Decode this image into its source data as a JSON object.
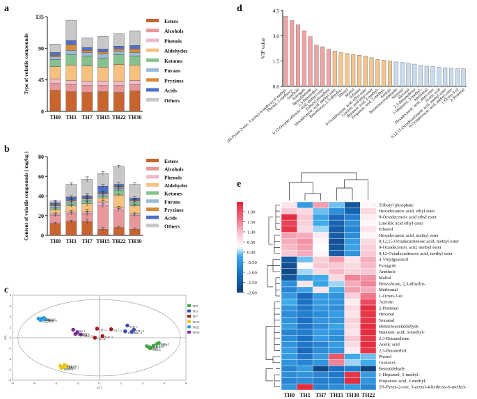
{
  "colors": {
    "Esters": "#c8642e",
    "Alcohols": "#e8989a",
    "Phenols": "#f1b8c8",
    "Aldehydes": "#f6c07e",
    "Ketones": "#86c28e",
    "Furans": "#9bbad8",
    "Pryzines": "#d88a3a",
    "Acids": "#5070c8",
    "Others": "#c8c8c8",
    "vip_red": "#f0a3a3",
    "vip_orange": "#f2c58e",
    "vip_blue": "#c9dcef"
  },
  "panel_labels": {
    "a": "a",
    "b": "b",
    "c": "c",
    "d": "d",
    "e": "e"
  },
  "chart_data": [
    {
      "id": "a",
      "type": "bar",
      "stacked": true,
      "ylabel": "Type of volatile compounds",
      "ylim": [
        0,
        135
      ],
      "yticks": [
        0,
        45,
        90,
        135
      ],
      "categories": [
        "TH0",
        "TH1",
        "TH7",
        "TH15",
        "TH22",
        "TH30"
      ],
      "series": [
        {
          "name": "Esters",
          "values": [
            30,
            28,
            27,
            28,
            27,
            29
          ]
        },
        {
          "name": "Alcohols",
          "values": [
            10,
            10,
            10,
            9,
            10,
            9
          ]
        },
        {
          "name": "Phenols",
          "values": [
            6,
            6,
            6,
            6,
            6,
            6
          ]
        },
        {
          "name": "Aldehydes",
          "values": [
            18,
            22,
            22,
            20,
            24,
            22
          ]
        },
        {
          "name": "Ketones",
          "values": [
            10,
            15,
            14,
            13,
            14,
            13
          ]
        },
        {
          "name": "Furans",
          "values": [
            4,
            6,
            5,
            6,
            5,
            5
          ]
        },
        {
          "name": "Pryzines",
          "values": [
            2,
            8,
            3,
            3,
            3,
            5
          ]
        },
        {
          "name": "Acids",
          "values": [
            4,
            6,
            4,
            4,
            4,
            5
          ]
        },
        {
          "name": "Others",
          "values": [
            12,
            29,
            14,
            18,
            18,
            21
          ]
        }
      ]
    },
    {
      "id": "b",
      "type": "bar",
      "stacked": true,
      "ylabel": "Content of volatile compounds ( mg/kg )",
      "ylim": [
        0,
        80
      ],
      "yticks": [
        0,
        20,
        40,
        60,
        80
      ],
      "categories": [
        "TH0",
        "TH1",
        "TH7",
        "TH15",
        "TH22",
        "TH30"
      ],
      "series": [
        {
          "name": "Esters",
          "values": [
            12,
            14,
            14,
            6,
            8,
            6
          ]
        },
        {
          "name": "Alcohols",
          "values": [
            8,
            8,
            8,
            24,
            18,
            14
          ]
        },
        {
          "name": "Phenols",
          "values": [
            2,
            2,
            2,
            4,
            2,
            2
          ]
        },
        {
          "name": "Aldehydes",
          "values": [
            4,
            6,
            8,
            4,
            13,
            8
          ]
        },
        {
          "name": "Ketones",
          "values": [
            2,
            3,
            3,
            2,
            5,
            3
          ]
        },
        {
          "name": "Furans",
          "values": [
            2,
            2,
            2,
            2,
            2,
            2
          ]
        },
        {
          "name": "Pryzines",
          "values": [
            1,
            1,
            1,
            1,
            1,
            1
          ]
        },
        {
          "name": "Acids",
          "values": [
            2,
            3,
            2,
            7,
            3,
            2
          ]
        },
        {
          "name": "Others",
          "values": [
            2,
            13,
            17,
            13,
            18,
            14
          ]
        }
      ],
      "errors": [
        1.5,
        2,
        4,
        3,
        2,
        2
      ]
    },
    {
      "id": "c",
      "type": "scatter",
      "xlabel": "t[1]",
      "ylabel": "t[2]",
      "xlim": [
        -8,
        8
      ],
      "ylim": [
        -8,
        8
      ],
      "legend": [
        "TH0",
        "TH1",
        "TH7",
        "TH15",
        "TH22",
        "TH30"
      ],
      "series": [
        {
          "name": "TH0",
          "color": "#3faa3f",
          "points": [
            [
              4.6,
              -1.8
            ],
            [
              5.0,
              -1.5
            ],
            [
              5.3,
              -1.2
            ],
            [
              4.7,
              -2.0
            ],
            [
              5.5,
              -1.0
            ],
            [
              4.4,
              -1.6
            ]
          ]
        },
        {
          "name": "TH1",
          "color": "#3a4fb0",
          "points": [
            [
              2.6,
              2.3
            ],
            [
              3.2,
              1.5
            ],
            [
              2.4,
              1.2
            ],
            [
              3.0,
              1.1
            ]
          ]
        },
        {
          "name": "TH7",
          "color": "#a01a1a",
          "points": [
            [
              -0.2,
              1.7
            ],
            [
              1.1,
              1.6
            ],
            [
              0.3,
              0.3
            ],
            [
              -0.4,
              0.0
            ]
          ]
        },
        {
          "name": "TH15",
          "color": "#e6c820",
          "points": [
            [
              -3.6,
              -5.3
            ],
            [
              -3.3,
              -5.5
            ],
            [
              -3.0,
              -5.4
            ],
            [
              -3.5,
              -5.7
            ],
            [
              -3.2,
              -5.1
            ]
          ]
        },
        {
          "name": "TH22",
          "color": "#2a9fd8",
          "points": [
            [
              -5.6,
              3.6
            ],
            [
              -5.3,
              3.6
            ],
            [
              -5.0,
              3.5
            ],
            [
              -5.4,
              3.3
            ],
            [
              -5.1,
              3.7
            ]
          ]
        },
        {
          "name": "TH30",
          "color": "#7a2a9a",
          "points": [
            [
              -2.4,
              1.5
            ],
            [
              -2.0,
              1.0
            ],
            [
              -1.7,
              0.6
            ],
            [
              -2.2,
              0.7
            ]
          ]
        }
      ]
    },
    {
      "id": "d",
      "type": "bar",
      "ylabel": "VIP value",
      "ylim": [
        0,
        4.5
      ],
      "yticks": [
        0,
        1.5,
        3.0,
        4.5
      ],
      "categories": [
        "2H-Pyran-2-one, 3-acetyl-4-hydroxy-6-methyl-",
        "Phenol, 2-methoxy-",
        "Anethole",
        "Estragole",
        "Benzaldehyde",
        "2,3-Butanediol",
        "9,12-Octadecadienoic acid, methyl ester",
        "Tributyl phosphate",
        "Hexadecanoic acid, methyl ester",
        "Benzofuran, 2,3-dihydro-",
        "Phenol",
        "Maltol",
        "Ethanol",
        "9-Octadecenoic acid, ethyl ester",
        "Linoleic acid ethyl ester",
        "Butanoic acid, 3-methyl-",
        "Propanoic acid, 2-methyl-",
        "Acetoin",
        "Benzeneacetaldehyde",
        "Nonanal",
        "Hexanal",
        "2,3-Butanedione",
        "1-Heptanol, 3-methyl-",
        "Methional",
        "Hexadecanoic acid, ethyl ester",
        "Acetic acid",
        "9,12,15-Octadecatrienoic acid, methyl ester",
        "9-Octadecenoic acid, methyl ester",
        "1-Octen-3-ol",
        "2-Pentenal"
      ],
      "values": [
        4.15,
        3.9,
        3.65,
        3.3,
        2.95,
        2.45,
        2.35,
        2.2,
        2.1,
        2.0,
        1.95,
        1.9,
        1.85,
        1.8,
        1.7,
        1.6,
        1.55,
        1.5,
        1.45,
        1.42,
        1.38,
        1.32,
        1.25,
        1.2,
        1.18,
        1.15,
        1.1,
        1.08,
        1.05,
        1.05
      ],
      "groups": [
        "red",
        "red",
        "red",
        "red",
        "red",
        "red",
        "red",
        "red",
        "orange",
        "orange",
        "orange",
        "orange",
        "orange",
        "orange",
        "orange",
        "orange",
        "orange",
        "orange",
        "blue",
        "blue",
        "blue",
        "blue",
        "blue",
        "blue",
        "blue",
        "blue",
        "blue",
        "blue",
        "blue",
        "blue"
      ]
    },
    {
      "id": "e",
      "type": "heatmap",
      "columns": [
        "TH0",
        "TH1",
        "TH7",
        "TH15",
        "TH30",
        "TH22"
      ],
      "rows": [
        "Tributyl phosphate",
        "Hexadecanoic acid, ethyl ester",
        "9-Octadecenoic acid ethyl ester",
        "Linoleic acid ethyl ester",
        "Ethanol",
        "Hexadecanoic acid, methyl ester",
        "9,12,15-Octadecatrienoic acid, methyl ester",
        "9-Octadecenoic acid, methyl ester",
        "9,12-Octadecadienoic acid, methyl ester",
        "4-Vinylguaiacol",
        "Estragole",
        "Anethole",
        "Maltol",
        "Benzofuran, 2,3-dihydro-",
        "Methional",
        "1-Octen-3-ol",
        "Acetoin",
        "2-Pentenal",
        "Hexanal",
        "Nonanal",
        "Benzeneacetaldehyde",
        "Butanoic acid, 3-methyl-",
        "2,3-Butanedione",
        "Acetic acid",
        "2,3-Butanediol",
        "Phenol",
        "Guaiacol",
        "Benzaldehyde",
        "1-Heptanol, 3-methyl-",
        "Propanoic acid, 2-methyl-",
        "2H-Pyran-2-one, 3-acetyl-4-hydroxy-6-methyl-"
      ],
      "values": [
        [
          0.3,
          -0.6,
          0.9,
          -0.3,
          -1.6,
          0.1
        ],
        [
          0.6,
          0.4,
          -0.3,
          -0.8,
          -1.4,
          0.4
        ],
        [
          1.9,
          0.6,
          -0.5,
          -1.3,
          -1.0,
          0.2
        ],
        [
          1.7,
          0.5,
          -0.4,
          -1.4,
          -0.8,
          0.1
        ],
        [
          1.8,
          0.4,
          -0.2,
          -1.5,
          -0.9,
          0.3
        ],
        [
          0.9,
          0.8,
          0.2,
          -1.5,
          -0.8,
          0.1
        ],
        [
          0.8,
          1.0,
          0.1,
          -1.7,
          -0.6,
          0.4
        ],
        [
          0.7,
          0.9,
          0.0,
          -1.6,
          -0.5,
          0.5
        ],
        [
          0.6,
          0.8,
          0.1,
          -1.5,
          -0.7,
          0.6
        ],
        [
          -1.6,
          -0.3,
          0.5,
          0.9,
          0.3,
          0.8
        ],
        [
          -1.7,
          0.0,
          0.6,
          0.6,
          0.4,
          0.7
        ],
        [
          -1.8,
          -0.2,
          0.4,
          0.7,
          0.5,
          0.6
        ],
        [
          -1.6,
          -0.6,
          -0.4,
          0.4,
          1.1,
          1.0
        ],
        [
          -0.8,
          0.3,
          -0.5,
          -0.2,
          0.8,
          1.1
        ],
        [
          -0.9,
          -0.5,
          0.3,
          -0.4,
          0.9,
          0.8
        ],
        [
          -0.6,
          -1.3,
          -0.6,
          -0.7,
          0.5,
          1.2
        ],
        [
          -0.4,
          -1.2,
          -0.6,
          -0.7,
          0.2,
          1.6
        ],
        [
          -0.7,
          -1.1,
          -0.7,
          -0.8,
          0.4,
          1.9
        ],
        [
          -0.8,
          -1.0,
          -0.8,
          -0.6,
          0.3,
          1.8
        ],
        [
          -0.7,
          -1.2,
          -0.7,
          -0.7,
          0.5,
          1.8
        ],
        [
          -0.6,
          -1.1,
          -0.8,
          -0.5,
          0.4,
          1.9
        ],
        [
          -0.9,
          -1.0,
          -0.6,
          -0.7,
          0.3,
          1.9
        ],
        [
          -0.8,
          -1.2,
          -0.6,
          -0.8,
          0.6,
          1.8
        ],
        [
          -0.7,
          -1.1,
          -0.9,
          -0.6,
          0.4,
          1.9
        ],
        [
          -0.6,
          -1.3,
          -0.8,
          -0.7,
          0.2,
          1.8
        ],
        [
          -0.6,
          -1.1,
          -0.6,
          1.5,
          -0.4,
          -0.3
        ],
        [
          -0.7,
          -0.9,
          -0.7,
          1.1,
          -0.2,
          -0.4
        ],
        [
          -0.9,
          -0.6,
          -1.8,
          -1.2,
          -1.0,
          -1.9
        ],
        [
          -0.8,
          -0.7,
          -0.9,
          -1.1,
          1.8,
          -0.6
        ],
        [
          -0.9,
          -0.8,
          -1.0,
          -1.0,
          1.9,
          -0.7
        ],
        [
          -0.7,
          1.9,
          -0.9,
          -0.8,
          -0.6,
          -0.9
        ]
      ],
      "scale": {
        "min": -2.0,
        "max": 2.0,
        "ticks": [
          "1.90",
          "1.50",
          "1.00",
          "0.50",
          "0.00",
          "-0.50",
          "-1.00",
          "-1.50",
          "-2.00"
        ]
      }
    }
  ]
}
